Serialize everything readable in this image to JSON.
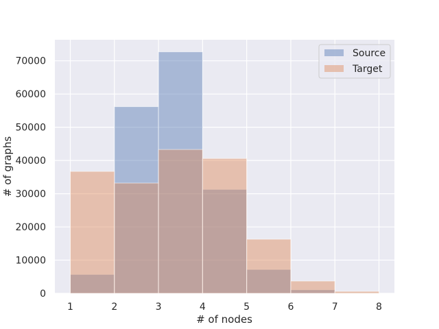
{
  "chart_data": {
    "type": "bar",
    "subtype": "overlapping-histogram",
    "bin_edges": [
      1,
      2,
      3,
      4,
      5,
      6,
      7,
      8
    ],
    "series": [
      {
        "name": "Source",
        "color": "#4c72b0",
        "values": [
          5700,
          56200,
          72700,
          31300,
          7200,
          1100,
          100
        ]
      },
      {
        "name": "Target",
        "color": "#dd8452",
        "values": [
          36700,
          33200,
          43300,
          40600,
          16300,
          3700,
          600
        ]
      }
    ],
    "xlabel": "# of nodes",
    "ylabel": "# of graphs",
    "xticks": [
      1,
      2,
      3,
      4,
      5,
      6,
      7,
      8
    ],
    "yticks": [
      0,
      10000,
      20000,
      30000,
      40000,
      50000,
      60000,
      70000
    ],
    "xlim": [
      0.65,
      8.35
    ],
    "ylim": [
      0,
      76335
    ],
    "grid": true,
    "legend_position": "top-right",
    "colors": {
      "background": "#eaeaf2",
      "grid": "#ffffff"
    }
  }
}
